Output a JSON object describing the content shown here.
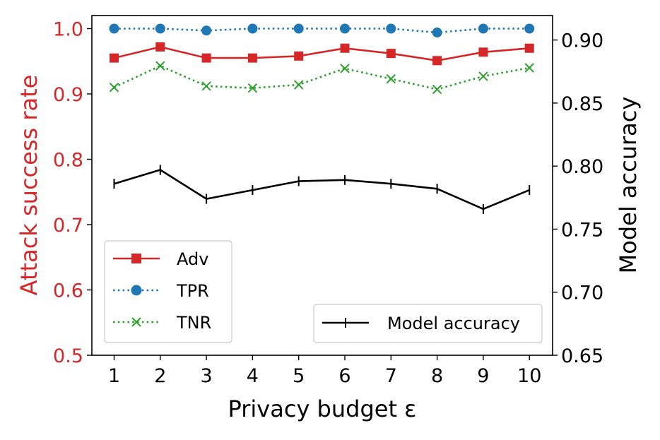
{
  "chart_data": {
    "type": "line",
    "x": [
      1,
      2,
      3,
      4,
      5,
      6,
      7,
      8,
      9,
      10
    ],
    "xlabel": "Privacy budget ε",
    "xticks": [
      "1",
      "2",
      "3",
      "4",
      "5",
      "6",
      "7",
      "8",
      "9",
      "10"
    ],
    "left_axis": {
      "label": "Attack success rate",
      "color": "#d62728",
      "ylim": [
        0.5,
        1.02
      ],
      "ticks": [
        "0.5",
        "0.6",
        "0.7",
        "0.8",
        "0.9",
        "1.0"
      ]
    },
    "right_axis": {
      "label": "Model accuracy",
      "color": "#000000",
      "ylim": [
        0.65,
        0.9194
      ],
      "ticks": [
        "0.65",
        "0.70",
        "0.75",
        "0.80",
        "0.85",
        "0.90"
      ]
    },
    "series": [
      {
        "name": "Adv",
        "axis": "left",
        "color": "#d62728",
        "line": "solid",
        "marker": "square",
        "values": [
          0.955,
          0.972,
          0.955,
          0.955,
          0.958,
          0.97,
          0.962,
          0.951,
          0.964,
          0.97
        ]
      },
      {
        "name": "TPR",
        "axis": "left",
        "color": "#1f77b4",
        "line": "dotted",
        "marker": "circle",
        "values": [
          1.0,
          1.0,
          0.997,
          1.0,
          1.0,
          1.0,
          1.0,
          0.994,
          1.0,
          1.0
        ]
      },
      {
        "name": "TNR",
        "axis": "left",
        "color": "#2ca02c",
        "line": "dotted",
        "marker": "x",
        "values": [
          0.91,
          0.943,
          0.912,
          0.909,
          0.914,
          0.939,
          0.923,
          0.907,
          0.927,
          0.94
        ]
      },
      {
        "name": "Model accuracy",
        "axis": "right",
        "color": "#000000",
        "line": "solid",
        "marker": "plus",
        "values": [
          0.786,
          0.797,
          0.774,
          0.781,
          0.788,
          0.789,
          0.786,
          0.782,
          0.766,
          0.781
        ]
      }
    ],
    "legends": [
      {
        "position": "lower-left",
        "entries": [
          "Adv",
          "TPR",
          "TNR"
        ]
      },
      {
        "position": "lower-right",
        "entries": [
          "Model accuracy"
        ]
      }
    ],
    "grid": false
  }
}
